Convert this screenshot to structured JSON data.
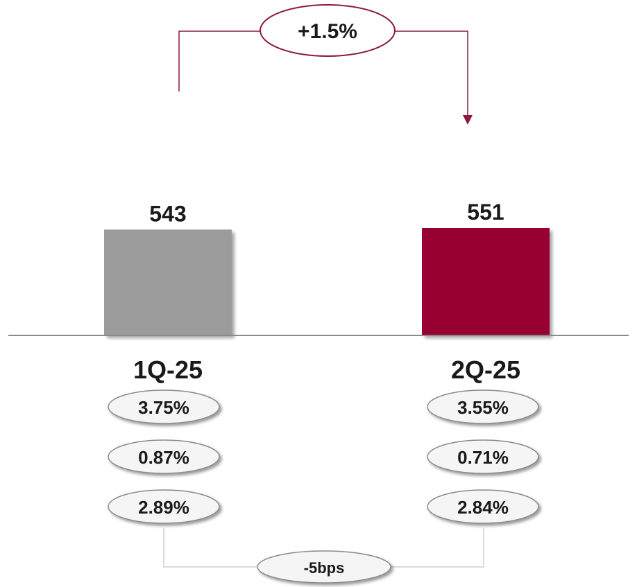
{
  "chart_data": {
    "type": "bar",
    "categories": [
      "1Q-25",
      "2Q-25"
    ],
    "values": [
      543,
      551
    ],
    "ylim": [
      0,
      551
    ],
    "title": "",
    "xlabel": "",
    "ylabel": "",
    "grid": false,
    "growth_label": "+1.5%",
    "rate_rows": [
      [
        "3.75%",
        "3.55%"
      ],
      [
        "0.87%",
        "0.71%"
      ],
      [
        "2.89%",
        "2.84%"
      ]
    ],
    "rate_change_label": "-5bps"
  },
  "colors": {
    "bar_prior": "#9b9b9b",
    "bar_current": "#990033",
    "accent": "#8c1a3e",
    "axis": "#8a8a8a",
    "pill_fill": "#f5f5f5",
    "pill_stroke": "#8a8a8a",
    "connector": "#cfcfcf"
  }
}
